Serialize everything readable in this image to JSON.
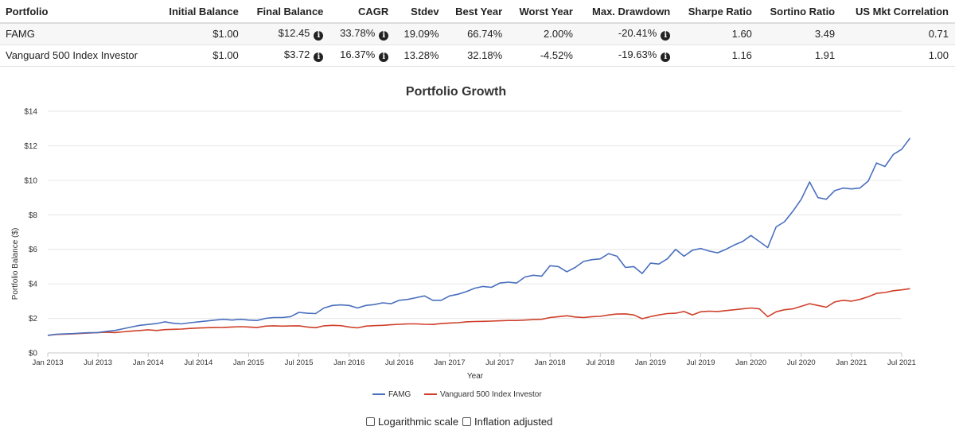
{
  "table": {
    "headers": [
      "Portfolio",
      "Initial Balance",
      "Final Balance",
      "CAGR",
      "Stdev",
      "Best Year",
      "Worst Year",
      "Max. Drawdown",
      "Sharpe Ratio",
      "Sortino Ratio",
      "US Mkt Correlation"
    ],
    "rows": [
      {
        "portfolio": "FAMG",
        "initial": "$1.00",
        "final": "$12.45",
        "cagr": "33.78%",
        "stdev": "19.09%",
        "best": "66.74%",
        "worst": "2.00%",
        "drawdown": "-20.41%",
        "sharpe": "1.60",
        "sortino": "3.49",
        "corr": "0.71"
      },
      {
        "portfolio": "Vanguard 500 Index Investor",
        "initial": "$1.00",
        "final": "$3.72",
        "cagr": "16.37%",
        "stdev": "13.28%",
        "best": "32.18%",
        "worst": "-4.52%",
        "drawdown": "-19.63%",
        "sharpe": "1.16",
        "sortino": "1.91",
        "corr": "1.00"
      }
    ]
  },
  "chart_data": {
    "type": "line",
    "title": "Portfolio Growth",
    "xlabel": "Year",
    "ylabel": "Portfolio Balance ($)",
    "ylim": [
      0,
      14
    ],
    "yticks": [
      0,
      2,
      4,
      6,
      8,
      10,
      12,
      14
    ],
    "ytick_labels": [
      "$0",
      "$2",
      "$4",
      "$6",
      "$8",
      "$10",
      "$12",
      "$14"
    ],
    "xlim": [
      0,
      101
    ],
    "xticks": [
      0,
      6,
      12,
      18,
      24,
      30,
      36,
      42,
      48,
      54,
      60,
      66,
      72,
      78,
      84,
      90,
      96,
      102
    ],
    "xtick_labels": [
      "Jan 2013",
      "Jul 2013",
      "Jan 2014",
      "Jul 2014",
      "Jan 2015",
      "Jul 2015",
      "Jan 2016",
      "Jul 2016",
      "Jan 2017",
      "Jul 2017",
      "Jan 2018",
      "Jul 2018",
      "Jan 2019",
      "Jul 2019",
      "Jan 2020",
      "Jul 2020",
      "Jan 2021",
      "Jul 2021"
    ],
    "x_unit": "months since Jan 2013",
    "series": [
      {
        "name": "FAMG",
        "color": "#4a6fbe",
        "values": [
          1.02,
          1.08,
          1.1,
          1.12,
          1.15,
          1.17,
          1.18,
          1.25,
          1.3,
          1.4,
          1.5,
          1.6,
          1.65,
          1.7,
          1.8,
          1.72,
          1.68,
          1.75,
          1.8,
          1.85,
          1.9,
          1.95,
          1.9,
          1.95,
          1.9,
          1.88,
          2.0,
          2.05,
          2.05,
          2.1,
          2.35,
          2.3,
          2.28,
          2.6,
          2.75,
          2.78,
          2.75,
          2.6,
          2.75,
          2.8,
          2.9,
          2.85,
          3.05,
          3.1,
          3.2,
          3.3,
          3.05,
          3.05,
          3.3,
          3.4,
          3.55,
          3.75,
          3.85,
          3.8,
          4.05,
          4.1,
          4.05,
          4.4,
          4.5,
          4.45,
          5.05,
          5.0,
          4.7,
          4.95,
          5.3,
          5.4,
          5.45,
          5.75,
          5.6,
          4.95,
          5.0,
          4.6,
          5.2,
          5.15,
          5.45,
          6.0,
          5.6,
          5.95,
          6.05,
          5.9,
          5.8,
          6.0,
          6.25,
          6.45,
          6.8,
          6.45,
          6.1,
          7.3,
          7.6,
          8.2,
          8.9,
          9.9,
          9.0,
          8.9,
          9.4,
          9.55,
          9.5,
          9.55,
          9.95,
          11.0,
          10.8,
          11.5,
          11.8,
          12.45
        ]
      },
      {
        "name": "Vanguard 500 Index Investor",
        "color": "#cf3f2a",
        "values": [
          1.02,
          1.07,
          1.08,
          1.1,
          1.13,
          1.15,
          1.18,
          1.2,
          1.18,
          1.22,
          1.26,
          1.3,
          1.34,
          1.3,
          1.35,
          1.37,
          1.38,
          1.42,
          1.44,
          1.46,
          1.47,
          1.48,
          1.5,
          1.52,
          1.5,
          1.47,
          1.55,
          1.57,
          1.55,
          1.56,
          1.57,
          1.5,
          1.46,
          1.57,
          1.6,
          1.58,
          1.5,
          1.45,
          1.55,
          1.58,
          1.6,
          1.63,
          1.66,
          1.68,
          1.68,
          1.66,
          1.65,
          1.7,
          1.73,
          1.75,
          1.8,
          1.82,
          1.83,
          1.84,
          1.86,
          1.88,
          1.88,
          1.9,
          1.93,
          1.95,
          2.05,
          2.1,
          2.15,
          2.08,
          2.05,
          2.1,
          2.12,
          2.2,
          2.25,
          2.26,
          2.2,
          1.98,
          2.1,
          2.2,
          2.28,
          2.3,
          2.4,
          2.2,
          2.38,
          2.42,
          2.4,
          2.45,
          2.5,
          2.55,
          2.6,
          2.55,
          2.1,
          2.38,
          2.5,
          2.55,
          2.7,
          2.85,
          2.75,
          2.65,
          2.95,
          3.05,
          3.0,
          3.1,
          3.25,
          3.45,
          3.5,
          3.6,
          3.65,
          3.72
        ]
      }
    ],
    "legend": "bottom-center"
  },
  "controls": {
    "log_scale": "Logarithmic scale",
    "inflation": "Inflation adjusted"
  }
}
